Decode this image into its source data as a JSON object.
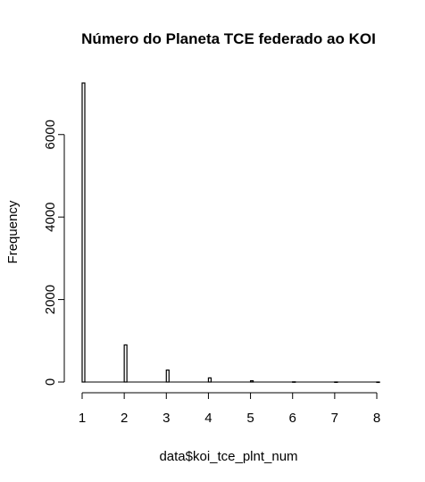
{
  "chart_data": {
    "type": "bar",
    "title": "Número do Planeta TCE federado ao KOI",
    "xlabel": "data$koi_tce_plnt_num",
    "ylabel": "Frequency",
    "x_ticks": [
      "1",
      "2",
      "3",
      "4",
      "5",
      "6",
      "7",
      "8"
    ],
    "y_ticks": [
      "0",
      "2000",
      "4000",
      "6000"
    ],
    "xlim": [
      1,
      8
    ],
    "ylim": [
      0,
      7250
    ],
    "bars": [
      {
        "x": 1,
        "value": 7250
      },
      {
        "x": 2,
        "value": 900
      },
      {
        "x": 3,
        "value": 290
      },
      {
        "x": 4,
        "value": 100
      },
      {
        "x": 5,
        "value": 30
      },
      {
        "x": 6,
        "value": 5
      },
      {
        "x": 7,
        "value": 2
      },
      {
        "x": 8,
        "value": 1
      }
    ],
    "grid": false,
    "colors": {
      "bar_fill": "#ffffff",
      "bar_stroke": "#000000"
    }
  }
}
